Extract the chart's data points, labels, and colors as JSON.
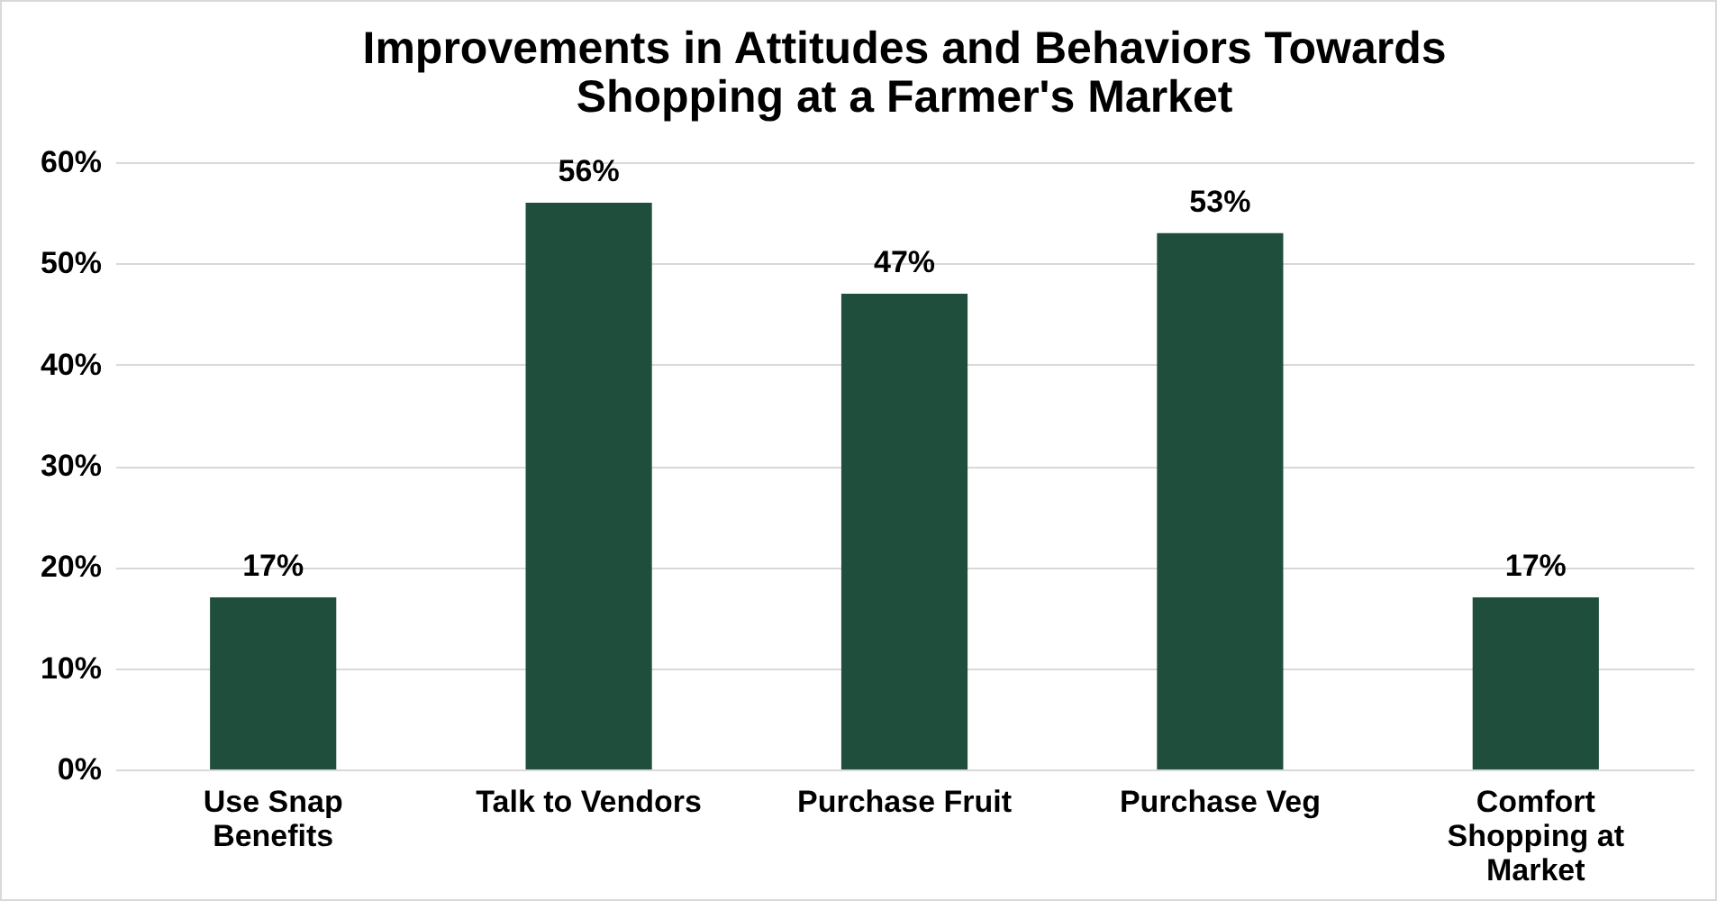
{
  "chart_data": {
    "type": "bar",
    "title": "Improvements in Attitudes and Behaviors Towards Shopping at a Farmer's Market",
    "categories": [
      "Use Snap Benefits",
      "Talk to Vendors",
      "Purchase Fruit",
      "Purchase Veg",
      "Comfort Shopping at Market"
    ],
    "values": [
      17,
      56,
      47,
      53,
      17
    ],
    "value_labels": [
      "17%",
      "56%",
      "47%",
      "53%",
      "17%"
    ],
    "color": "#1f4e3d",
    "ylim": [
      0,
      60
    ],
    "yticks": [
      {
        "value": 0,
        "label": "0%"
      },
      {
        "value": 10,
        "label": "10%"
      },
      {
        "value": 20,
        "label": "20%"
      },
      {
        "value": 30,
        "label": "30%"
      },
      {
        "value": 40,
        "label": "40%"
      },
      {
        "value": 50,
        "label": "50%"
      },
      {
        "value": 60,
        "label": "60%"
      }
    ],
    "grid": "y"
  }
}
